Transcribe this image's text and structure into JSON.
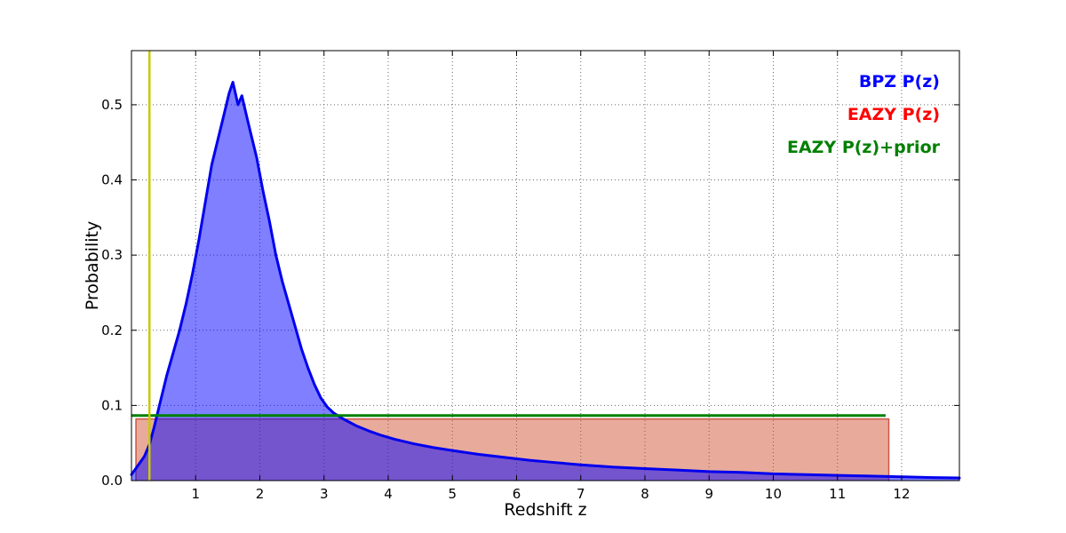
{
  "axes": {
    "xlabel": "Redshift z",
    "ylabel": "Probability"
  },
  "legend": {
    "items": [
      {
        "label": "BPZ P(z)",
        "color": "#0000ff"
      },
      {
        "label": "EAZY P(z)",
        "color": "#ff0000"
      },
      {
        "label": "EAZY P(z)+prior",
        "color": "#008000"
      }
    ]
  },
  "chart_data": {
    "type": "line",
    "title": "",
    "xlabel": "Redshift z",
    "ylabel": "Probability",
    "xlim": [
      0,
      12.9
    ],
    "ylim": [
      0,
      0.572
    ],
    "grid": true,
    "grid_style": "dotted",
    "legend_position": "upper right",
    "x_ticks": [
      1,
      2,
      3,
      4,
      5,
      6,
      7,
      8,
      9,
      10,
      11,
      12
    ],
    "y_ticks": [
      [
        0,
        "0.0"
      ],
      [
        0.1,
        "0.1"
      ],
      [
        0.2,
        "0.2"
      ],
      [
        0.3,
        "0.3"
      ],
      [
        0.4,
        "0.4"
      ],
      [
        0.5,
        "0.5"
      ]
    ],
    "series": [
      {
        "name": "EAZY P(z)",
        "type": "area",
        "color": "#cc5544",
        "fill_color": "#cc4422",
        "fill_opacity": 0.45,
        "line_width": 1.5,
        "points": [
          [
            0.07,
            0
          ],
          [
            0.07,
            0.082
          ],
          [
            11.8,
            0.082
          ],
          [
            11.8,
            0
          ]
        ]
      },
      {
        "name": "BPZ P(z)",
        "type": "area",
        "color": "#0000ee",
        "fill_color": "#0000ff",
        "fill_opacity": 0.5,
        "line_width": 3,
        "points": [
          [
            0.0,
            0.008
          ],
          [
            0.1,
            0.02
          ],
          [
            0.2,
            0.032
          ],
          [
            0.28,
            0.048
          ],
          [
            0.35,
            0.07
          ],
          [
            0.45,
            0.105
          ],
          [
            0.55,
            0.14
          ],
          [
            0.65,
            0.17
          ],
          [
            0.75,
            0.2
          ],
          [
            0.85,
            0.235
          ],
          [
            0.95,
            0.275
          ],
          [
            1.05,
            0.32
          ],
          [
            1.15,
            0.37
          ],
          [
            1.25,
            0.42
          ],
          [
            1.35,
            0.455
          ],
          [
            1.45,
            0.49
          ],
          [
            1.52,
            0.515
          ],
          [
            1.58,
            0.53
          ],
          [
            1.62,
            0.515
          ],
          [
            1.66,
            0.5
          ],
          [
            1.72,
            0.512
          ],
          [
            1.78,
            0.49
          ],
          [
            1.85,
            0.465
          ],
          [
            1.95,
            0.43
          ],
          [
            2.05,
            0.385
          ],
          [
            2.15,
            0.345
          ],
          [
            2.25,
            0.3
          ],
          [
            2.35,
            0.265
          ],
          [
            2.45,
            0.235
          ],
          [
            2.55,
            0.205
          ],
          [
            2.65,
            0.175
          ],
          [
            2.75,
            0.15
          ],
          [
            2.85,
            0.128
          ],
          [
            2.95,
            0.11
          ],
          [
            3.05,
            0.098
          ],
          [
            3.15,
            0.09
          ],
          [
            3.3,
            0.082
          ],
          [
            3.5,
            0.073
          ],
          [
            3.7,
            0.066
          ],
          [
            3.9,
            0.06
          ],
          [
            4.1,
            0.055
          ],
          [
            4.4,
            0.049
          ],
          [
            4.7,
            0.044
          ],
          [
            5.0,
            0.04
          ],
          [
            5.4,
            0.035
          ],
          [
            5.8,
            0.031
          ],
          [
            6.2,
            0.027
          ],
          [
            6.6,
            0.024
          ],
          [
            7.0,
            0.021
          ],
          [
            7.5,
            0.018
          ],
          [
            8.0,
            0.016
          ],
          [
            8.5,
            0.014
          ],
          [
            9.0,
            0.012
          ],
          [
            9.5,
            0.011
          ],
          [
            10.0,
            0.009
          ],
          [
            10.5,
            0.008
          ],
          [
            11.0,
            0.007
          ],
          [
            11.5,
            0.006
          ],
          [
            12.0,
            0.005
          ],
          [
            12.5,
            0.004
          ],
          [
            12.9,
            0.0035
          ]
        ]
      },
      {
        "name": "EAZY P(z)+prior",
        "type": "line",
        "color": "#008000",
        "line_width": 3,
        "points": [
          [
            0.0,
            0.0865
          ],
          [
            11.75,
            0.0865
          ]
        ]
      },
      {
        "name": "redshift marker",
        "type": "vline",
        "color": "#c9c900",
        "line_width": 2.5,
        "x": 0.28
      }
    ]
  }
}
